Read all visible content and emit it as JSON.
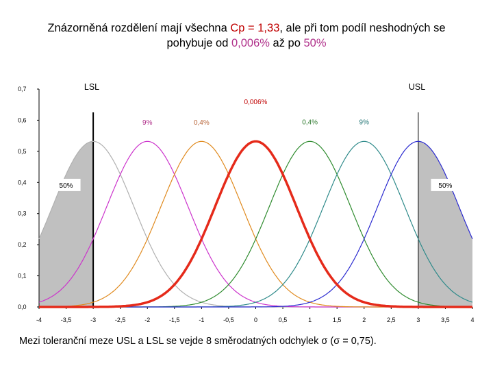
{
  "title": {
    "prefix": "Znázorněná rozdělení mají všechna ",
    "cp": "Cp = 1,33",
    "middle": ", ale při tom podíl neshodných se",
    "line2_start": "pohybuje od ",
    "low_pct": "0,006%",
    "line2_mid": " až po ",
    "high_pct": "50%"
  },
  "footer": {
    "text": "Mezi toleranční meze USL a LSL se vejde 8 směrodatných odchylek ",
    "sigma_a": "σ",
    "paren": " (",
    "sigma_b": "σ",
    "after": " = 0,75)."
  },
  "chart_data": {
    "type": "line",
    "title": "",
    "xlabel": "",
    "ylabel": "",
    "xlim": [
      -4,
      4
    ],
    "ylim": [
      0,
      0.7
    ],
    "x_ticks": [
      -4,
      -3.5,
      -3,
      -2.5,
      -2,
      -1.5,
      -1,
      -0.5,
      0,
      0.5,
      1,
      1.5,
      2,
      2.5,
      3,
      3.5,
      4
    ],
    "x_tick_labels": [
      "-4",
      "-3,5",
      "-3",
      "-2,5",
      "-2",
      "-1,5",
      "-1",
      "-0,5",
      "0",
      "0,5",
      "1",
      "1,5",
      "2",
      "2,5",
      "3",
      "3,5",
      "4"
    ],
    "y_ticks": [
      0,
      0.1,
      0.2,
      0.3,
      0.4,
      0.5,
      0.6,
      0.7
    ],
    "y_tick_labels": [
      "0,0",
      "0,1",
      "0,2",
      "0,3",
      "0,4",
      "0,5",
      "0,6",
      "0,7"
    ],
    "sigma": 0.75,
    "LSL": -3,
    "USL": 3,
    "limit_labels": {
      "lsl": "LSL",
      "usl": "USL"
    },
    "series": [
      {
        "name": "mean -3",
        "mean": -3,
        "color": "#b0b0b0",
        "width": 1.2,
        "shaded": true
      },
      {
        "name": "mean -2",
        "mean": -2,
        "color": "#cc33cc",
        "width": 1.2,
        "shaded": false
      },
      {
        "name": "mean -1",
        "mean": -1,
        "color": "#e08a1e",
        "width": 1.2,
        "shaded": false
      },
      {
        "name": "mean 0",
        "mean": 0,
        "color": "#e52a1a",
        "width": 3.5,
        "shaded": false
      },
      {
        "name": "mean 1",
        "mean": 1,
        "color": "#2e8b2e",
        "width": 1.2,
        "shaded": false
      },
      {
        "name": "mean 2",
        "mean": 2,
        "color": "#2e8a8a",
        "width": 1.2,
        "shaded": false
      },
      {
        "name": "mean 3",
        "mean": 3,
        "color": "#2a2ad0",
        "width": 1.2,
        "shaded": true
      }
    ],
    "annotations": [
      {
        "text": "0,006%",
        "x": 0,
        "y": 0.652,
        "color": "#c00000"
      },
      {
        "text": "9%",
        "x": -2,
        "y": 0.585,
        "color": "#b0308a"
      },
      {
        "text": "0,4%",
        "x": -1,
        "y": 0.585,
        "color": "#b8663a"
      },
      {
        "text": "0,4%",
        "x": 1,
        "y": 0.587,
        "color": "#2e7a2e"
      },
      {
        "text": "9%",
        "x": 2,
        "y": 0.587,
        "color": "#2a7a7a"
      }
    ],
    "boxed_annotations": [
      {
        "text": "50%",
        "x": -3.5,
        "y": 0.392
      },
      {
        "text": "50%",
        "x": 3.5,
        "y": 0.392
      }
    ]
  }
}
